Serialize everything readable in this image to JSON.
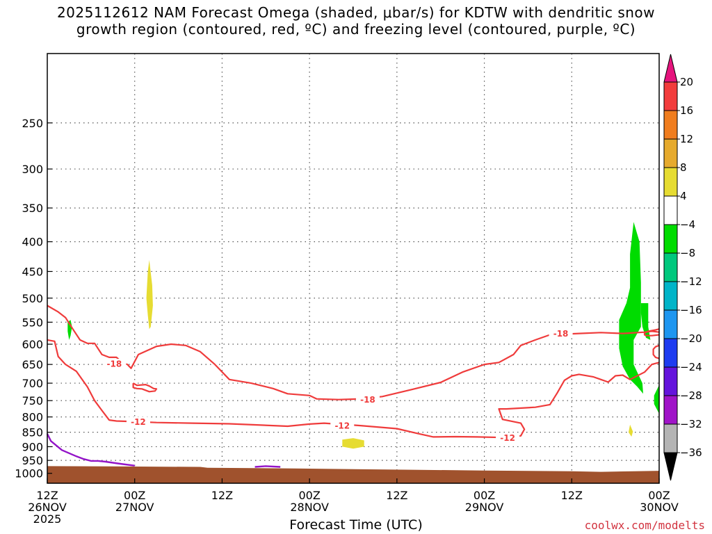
{
  "title_lines": [
    "2025112612 NAM Forecast Omega (shaded, μbar/s) for KDTW with dendritic snow",
    "growth region (contoured, red, ºC) and freezing level (contoured, purple, ºC)"
  ],
  "credit": "coolwx.com/modelts",
  "colors": {
    "terrain": "#a0522d",
    "red_contour": "#ef3b3b",
    "purple_contour": "#9314c8",
    "omega_green": "#00dc00",
    "omega_yellow": "#e6dc32"
  },
  "chart_data": {
    "type": "time-height",
    "xlabel": "Forecast Time (UTC)",
    "ylabel": "",
    "y_scale": "log-pressure",
    "ylim": [
      1040,
      190
    ],
    "y_ticks": [
      250,
      300,
      350,
      400,
      450,
      500,
      550,
      600,
      650,
      700,
      750,
      800,
      850,
      900,
      950,
      1000
    ],
    "x_ticks": [
      {
        "hour": 0,
        "labels": [
          "12Z",
          "26NOV",
          "2025"
        ]
      },
      {
        "hour": 12,
        "labels": [
          "00Z",
          "27NOV"
        ]
      },
      {
        "hour": 24,
        "labels": [
          "12Z"
        ]
      },
      {
        "hour": 36,
        "labels": [
          "00Z",
          "28NOV"
        ]
      },
      {
        "hour": 48,
        "labels": [
          "12Z"
        ]
      },
      {
        "hour": 60,
        "labels": [
          "00Z",
          "29NOV"
        ]
      },
      {
        "hour": 72,
        "labels": [
          "12Z"
        ]
      },
      {
        "hour": 84,
        "labels": [
          "00Z",
          "30NOV"
        ]
      }
    ],
    "xlim": [
      0,
      84
    ],
    "grid": true,
    "colorbar": {
      "labels": [
        "20",
        "16",
        "12",
        "8",
        "4",
        "−4",
        "−8",
        "−12",
        "−16",
        "−20",
        "−24",
        "−28",
        "−32",
        "−36"
      ],
      "colors": [
        "#f23c3c",
        "#f07d1e",
        "#e6aa2d",
        "#e6dc32",
        "#ffffff",
        "#00dc00",
        "#00c87d",
        "#00b4c8",
        "#1e96f0",
        "#1e3cf0",
        "#6414dc",
        "#a014c8",
        "#b4b4b4"
      ],
      "top_arrow_color": "#e6147d",
      "bottom_arrow_color": "#000000"
    },
    "contours_red": [
      {
        "label": "-18",
        "points": [
          [
            0,
            515
          ],
          [
            1.5,
            528
          ],
          [
            2.5,
            540
          ],
          [
            3.5,
            565
          ],
          [
            4.5,
            590
          ],
          [
            5.5,
            598
          ],
          [
            6.5,
            598
          ],
          [
            7.5,
            625
          ],
          [
            8.5,
            632
          ],
          [
            9.5,
            632
          ],
          [
            10.5,
            648
          ],
          [
            11,
            650
          ],
          [
            11.5,
            660
          ],
          [
            12.5,
            625
          ],
          [
            15,
            605
          ],
          [
            17,
            600
          ],
          [
            19,
            603
          ],
          [
            21,
            618
          ],
          [
            23,
            650
          ],
          [
            25,
            690
          ],
          [
            28,
            700
          ],
          [
            31,
            715
          ],
          [
            33,
            730
          ],
          [
            36,
            735
          ],
          [
            37,
            745
          ],
          [
            40,
            747
          ],
          [
            43,
            745
          ],
          [
            46,
            738
          ],
          [
            50,
            718
          ],
          [
            54,
            698
          ],
          [
            57,
            670
          ],
          [
            60,
            650
          ],
          [
            62,
            645
          ],
          [
            64,
            625
          ],
          [
            65,
            603
          ],
          [
            67,
            590
          ],
          [
            69,
            578
          ],
          [
            73,
            575
          ],
          [
            76,
            573
          ],
          [
            79,
            575
          ],
          [
            82,
            572
          ],
          [
            83,
            570
          ],
          [
            84,
            572
          ]
        ]
      },
      {
        "label": "-12",
        "points": [
          [
            0,
            590
          ],
          [
            1,
            593
          ],
          [
            1.5,
            630
          ],
          [
            2.5,
            650
          ],
          [
            4,
            668
          ],
          [
            5.5,
            710
          ],
          [
            6.5,
            750
          ],
          [
            7.5,
            780
          ],
          [
            8.5,
            810
          ],
          [
            9.5,
            813
          ],
          [
            12,
            815
          ],
          [
            15,
            818
          ],
          [
            20,
            820
          ],
          [
            25,
            822
          ],
          [
            31,
            828
          ],
          [
            33,
            830
          ],
          [
            36,
            823
          ],
          [
            38,
            820
          ],
          [
            43,
            828
          ],
          [
            48,
            838
          ],
          [
            51,
            855
          ],
          [
            53,
            866
          ],
          [
            56,
            865
          ],
          [
            59,
            866
          ],
          [
            63,
            868
          ],
          [
            65,
            862
          ],
          [
            65.5,
            840
          ],
          [
            65,
            820
          ],
          [
            62.5,
            808
          ],
          [
            62,
            775
          ],
          [
            63,
            775
          ],
          [
            67,
            770
          ],
          [
            69,
            762
          ],
          [
            70,
            728
          ],
          [
            71,
            692
          ],
          [
            72,
            680
          ],
          [
            73,
            676
          ],
          [
            75,
            683
          ],
          [
            76,
            690
          ],
          [
            77,
            697
          ],
          [
            78,
            680
          ],
          [
            79,
            678
          ],
          [
            80,
            690
          ],
          [
            82,
            670
          ],
          [
            83,
            650
          ],
          [
            84,
            645
          ]
        ]
      },
      {
        "label": "",
        "points": [
          [
            11.8,
            700
          ],
          [
            12.3,
            706
          ],
          [
            13.5,
            704
          ],
          [
            14,
            708
          ],
          [
            14.6,
            715
          ],
          [
            15,
            716
          ],
          [
            14.8,
            722
          ],
          [
            14,
            724
          ],
          [
            13,
            716
          ],
          [
            12.3,
            715
          ],
          [
            11.8,
            712
          ],
          [
            11.8,
            700
          ]
        ]
      },
      {
        "label": "",
        "points": [
          [
            84,
            565
          ],
          [
            83.5,
            567
          ],
          [
            82.5,
            570
          ],
          [
            82,
            574
          ],
          [
            82,
            578
          ],
          [
            82.2,
            580
          ],
          [
            83,
            580
          ],
          [
            84,
            578
          ]
        ]
      },
      {
        "label": "",
        "points": [
          [
            84,
            603
          ],
          [
            83.5,
            606
          ],
          [
            83.2,
            612
          ],
          [
            83.2,
            625
          ],
          [
            83.5,
            632
          ],
          [
            84,
            635
          ]
        ]
      }
    ],
    "contours_purple": [
      {
        "label": "",
        "points": [
          [
            0,
            855
          ],
          [
            0.5,
            880
          ],
          [
            2,
            912
          ],
          [
            4,
            935
          ],
          [
            5,
            945
          ],
          [
            6,
            952
          ],
          [
            7,
            952
          ],
          [
            8,
            955
          ],
          [
            10,
            963
          ],
          [
            12,
            970
          ]
        ]
      },
      {
        "label": "",
        "points": [
          [
            28.5,
            975
          ],
          [
            30,
            972
          ],
          [
            32,
            975
          ]
        ]
      }
    ],
    "omega_shaded": [
      {
        "value_range": "-8 to -4",
        "color": "omega_green",
        "points": [
          [
            2.8,
            550
          ],
          [
            3.2,
            545
          ],
          [
            3.4,
            560
          ],
          [
            3.2,
            580
          ],
          [
            3,
            590
          ],
          [
            2.8,
            570
          ]
        ]
      },
      {
        "value_range": "4 to 8",
        "color": "omega_yellow",
        "points": [
          [
            14,
            430
          ],
          [
            14.4,
            475
          ],
          [
            14.5,
            515
          ],
          [
            14.2,
            560
          ],
          [
            14,
            565
          ],
          [
            13.8,
            535
          ],
          [
            13.6,
            500
          ],
          [
            13.8,
            450
          ]
        ]
      },
      {
        "value_range": "4 to 8",
        "color": "omega_yellow",
        "points": [
          [
            40.5,
            875
          ],
          [
            42,
            870
          ],
          [
            43.5,
            878
          ],
          [
            43.5,
            900
          ],
          [
            42,
            907
          ],
          [
            40.5,
            900
          ]
        ]
      },
      {
        "value_range": "4 to 8",
        "color": "omega_yellow",
        "points": [
          [
            80,
            825
          ],
          [
            80.4,
            848
          ],
          [
            80.2,
            865
          ],
          [
            79.8,
            850
          ]
        ]
      },
      {
        "value_range": "-8 to -4",
        "color": "omega_green",
        "points": [
          [
            80.5,
            370
          ],
          [
            81.3,
            400
          ],
          [
            81.5,
            470
          ],
          [
            81.5,
            560
          ],
          [
            80.5,
            590
          ],
          [
            80.5,
            650
          ],
          [
            81.7,
            700
          ],
          [
            81.8,
            730
          ],
          [
            81,
            710
          ],
          [
            80,
            690
          ],
          [
            79,
            655
          ],
          [
            78.5,
            610
          ],
          [
            78.5,
            545
          ],
          [
            79.5,
            510
          ],
          [
            80,
            480
          ],
          [
            80,
            420
          ]
        ]
      },
      {
        "value_range": "-8 to -4",
        "color": "omega_green",
        "points": [
          [
            81.5,
            510
          ],
          [
            82.5,
            510
          ],
          [
            82.5,
            560
          ],
          [
            82.8,
            590
          ],
          [
            82.2,
            585
          ],
          [
            81.7,
            560
          ],
          [
            81.5,
            530
          ]
        ]
      },
      {
        "value_range": "-8 to -4",
        "color": "omega_green",
        "points": [
          [
            84,
            705
          ],
          [
            83.3,
            735
          ],
          [
            83.3,
            760
          ],
          [
            84,
            790
          ]
        ]
      }
    ],
    "terrain_pressure": [
      [
        0,
        972
      ],
      [
        9,
        973
      ],
      [
        21,
        975
      ],
      [
        22,
        978
      ],
      [
        34,
        981
      ],
      [
        50,
        986
      ],
      [
        60,
        989
      ],
      [
        72,
        992
      ],
      [
        76,
        994
      ],
      [
        84,
        990
      ]
    ]
  }
}
